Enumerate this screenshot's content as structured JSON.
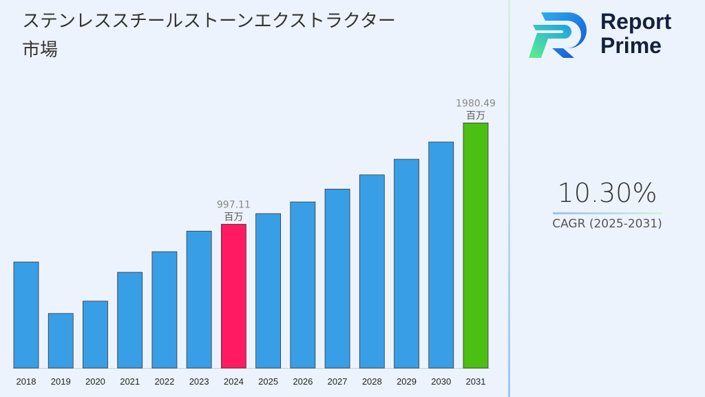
{
  "title": "ステンレススチールストーンエクストラクター 市場",
  "logo": {
    "line1": "Report",
    "line2": "Prime"
  },
  "cagr": {
    "value": "10.30%",
    "label": "CAGR (2025-2031)"
  },
  "chart_data": {
    "type": "bar",
    "title": "ステンレススチールストーンエクストラクター 市場",
    "categories": [
      "2018",
      "2019",
      "2020",
      "2021",
      "2022",
      "2023",
      "2024",
      "2025",
      "2026",
      "2027",
      "2028",
      "2029",
      "2030",
      "2031"
    ],
    "values": [
      630,
      130,
      250,
      530,
      730,
      930,
      997.11,
      1099.8,
      1213.1,
      1338.1,
      1475.9,
      1627.9,
      1795.6,
      1980.49
    ],
    "ylim": [
      -400,
      2050
    ],
    "grid": false,
    "colors": {
      "default": "#389fe6",
      "highlight_2024": "#ff1a62",
      "highlight_2031": "#4cbf13"
    },
    "annotations": [
      {
        "category": "2024",
        "value_label": "997.11",
        "unit": "百万"
      },
      {
        "category": "2031",
        "value_label": "1980.49",
        "unit": "百万"
      }
    ]
  }
}
